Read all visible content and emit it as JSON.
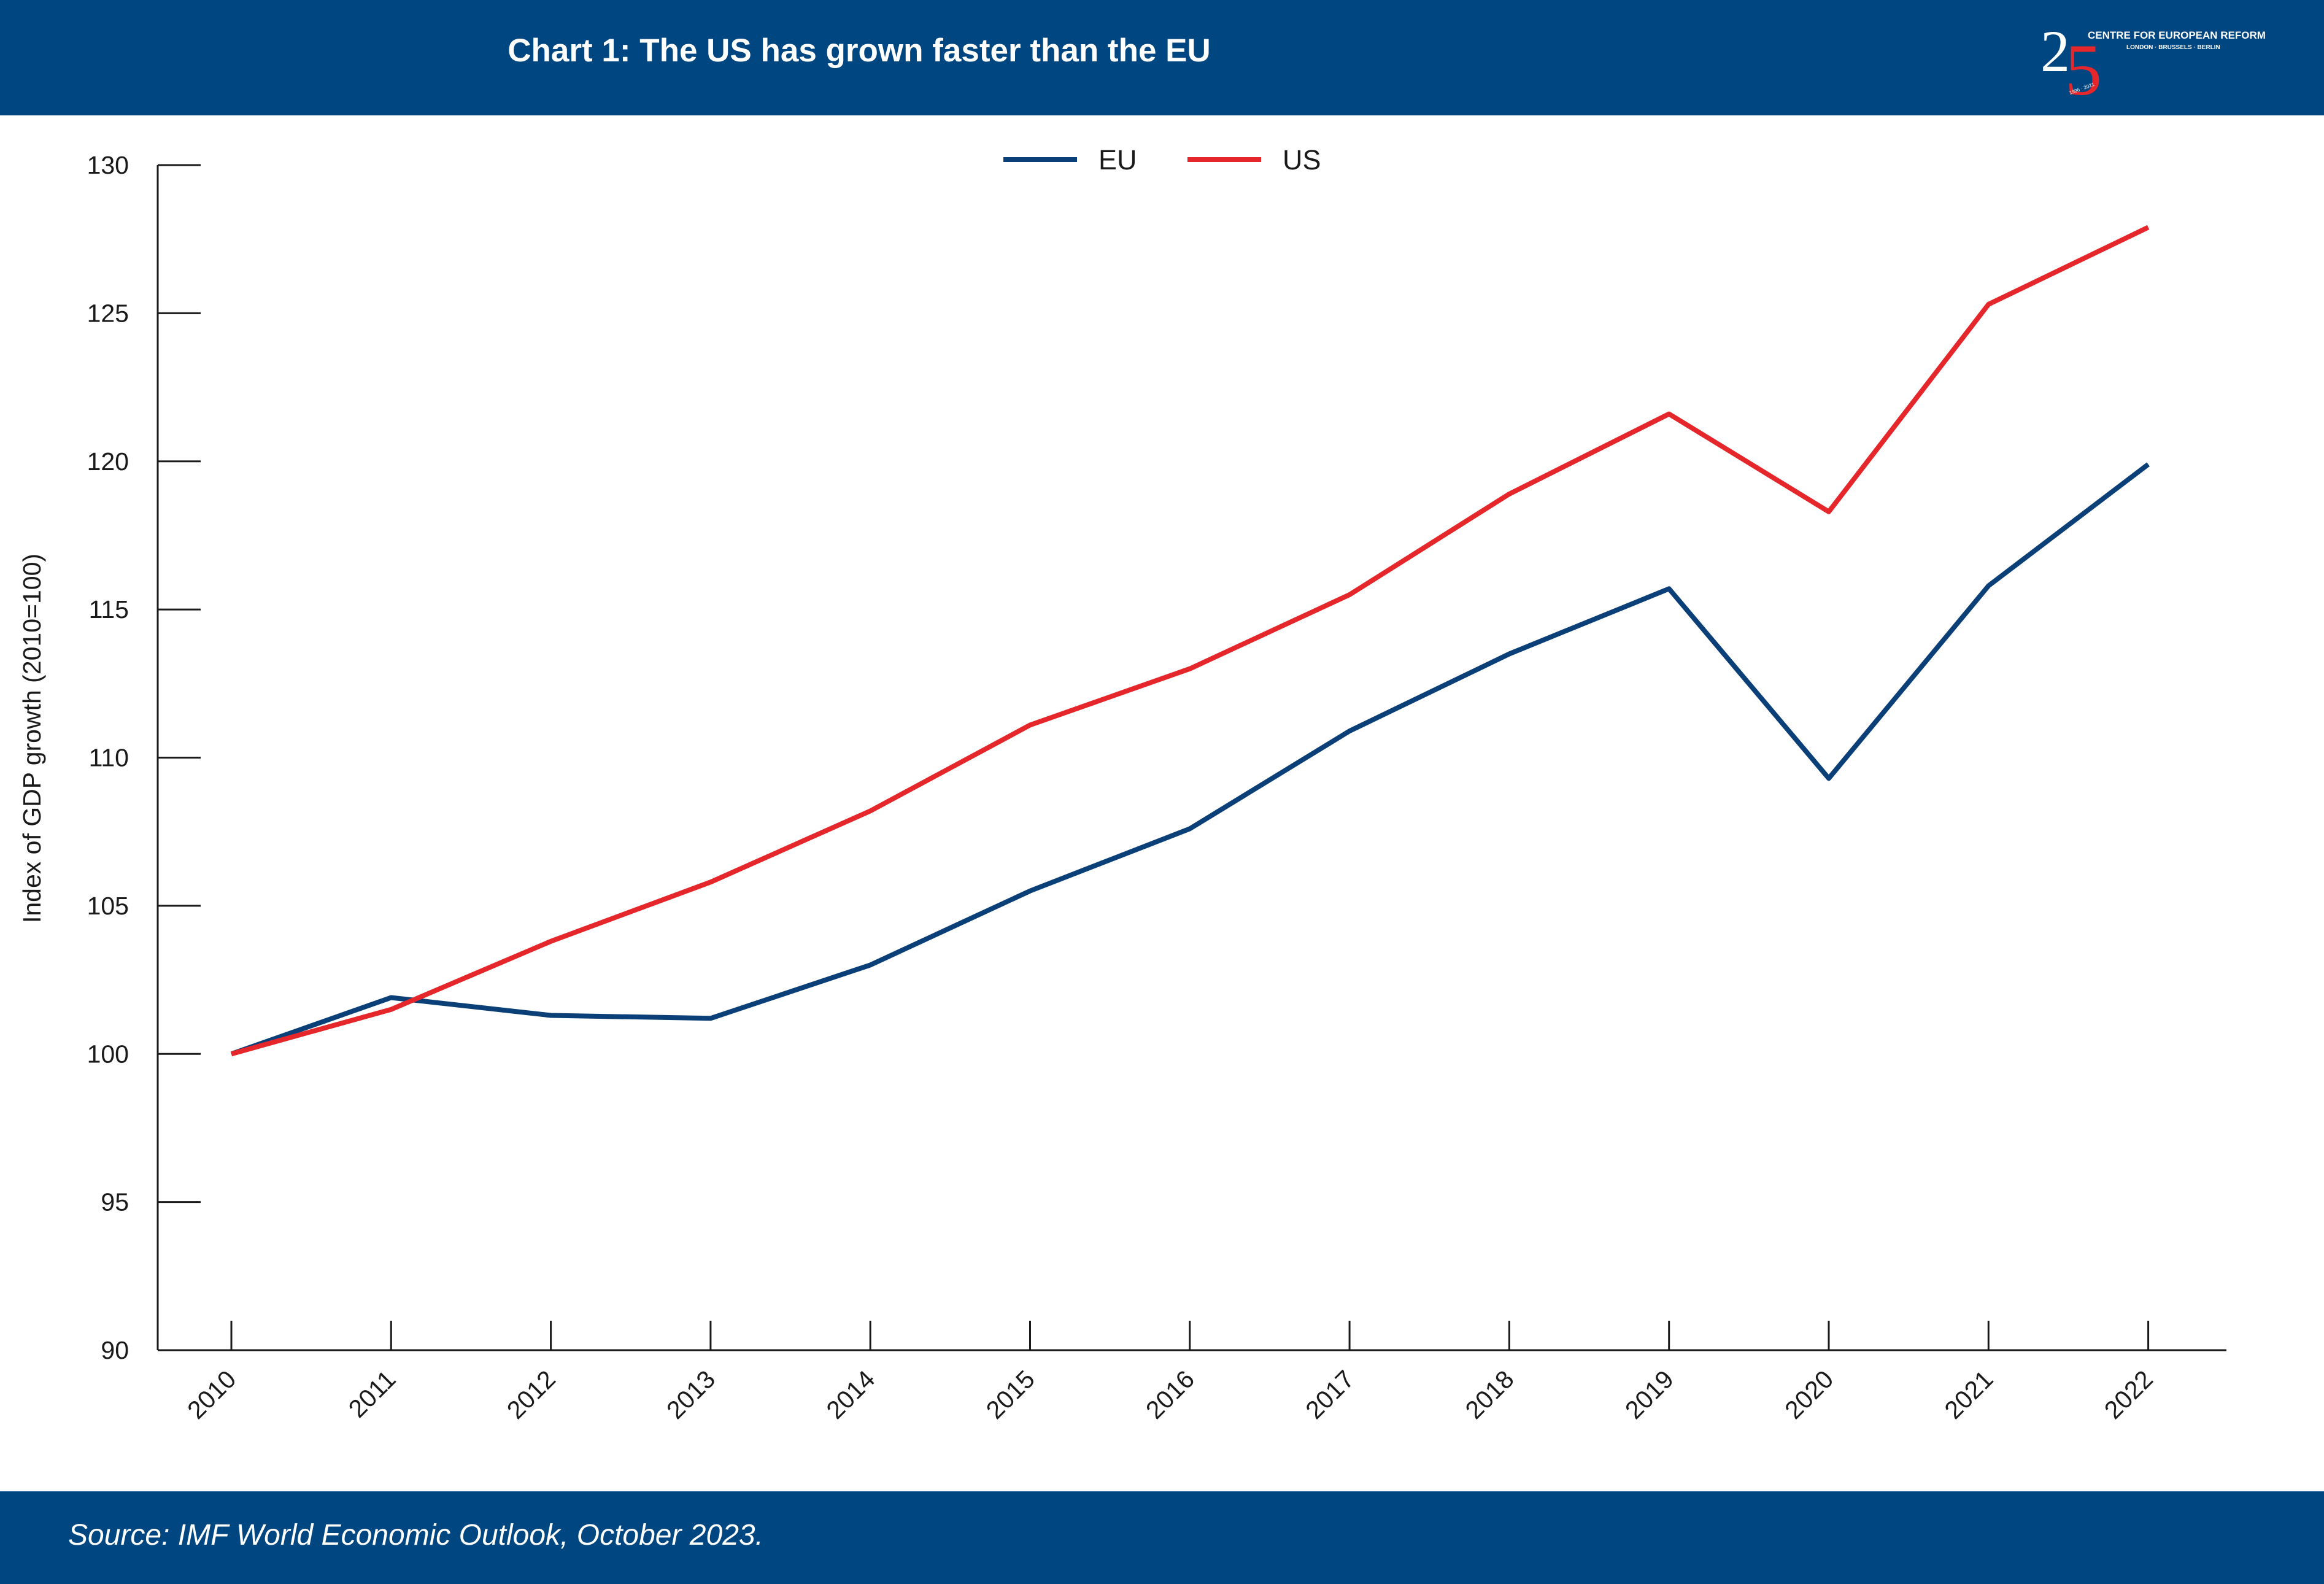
{
  "header": {
    "title": "Chart 1: The US has grown faster than the EU",
    "logo": {
      "number": "25",
      "name": "CENTRE FOR EUROPEAN REFORM",
      "cities": "LONDON · BRUSSELS · BERLIN",
      "years": "1996 · 2021"
    }
  },
  "footer": {
    "source": "Source: IMF World Economic Outlook, October 2023."
  },
  "colors": {
    "brand_blue": "#004680",
    "eu_line": "#0b3f77",
    "us_line": "#e5262a",
    "logo_red": "#e5262a"
  },
  "chart_data": {
    "type": "line",
    "title": "Chart 1: The US has grown faster than the EU",
    "xlabel": "",
    "ylabel": "Index of GDP growth (2010=100)",
    "categories": [
      "2010",
      "2011",
      "2012",
      "2013",
      "2014",
      "2015",
      "2016",
      "2017",
      "2018",
      "2019",
      "2020",
      "2021",
      "2022"
    ],
    "ylim": [
      90,
      130
    ],
    "yticks": [
      90,
      95,
      100,
      105,
      110,
      115,
      120,
      125,
      130
    ],
    "grid": false,
    "legend_position": "top-center",
    "series": [
      {
        "name": "EU",
        "color": "#0b3f77",
        "values": [
          100.0,
          101.9,
          101.3,
          101.2,
          103.0,
          105.5,
          107.6,
          110.9,
          113.5,
          115.7,
          109.3,
          115.8,
          119.9
        ]
      },
      {
        "name": "US",
        "color": "#e5262a",
        "values": [
          100.0,
          101.5,
          103.8,
          105.8,
          108.2,
          111.1,
          113.0,
          115.5,
          118.9,
          121.6,
          118.3,
          125.3,
          127.9
        ]
      }
    ]
  }
}
